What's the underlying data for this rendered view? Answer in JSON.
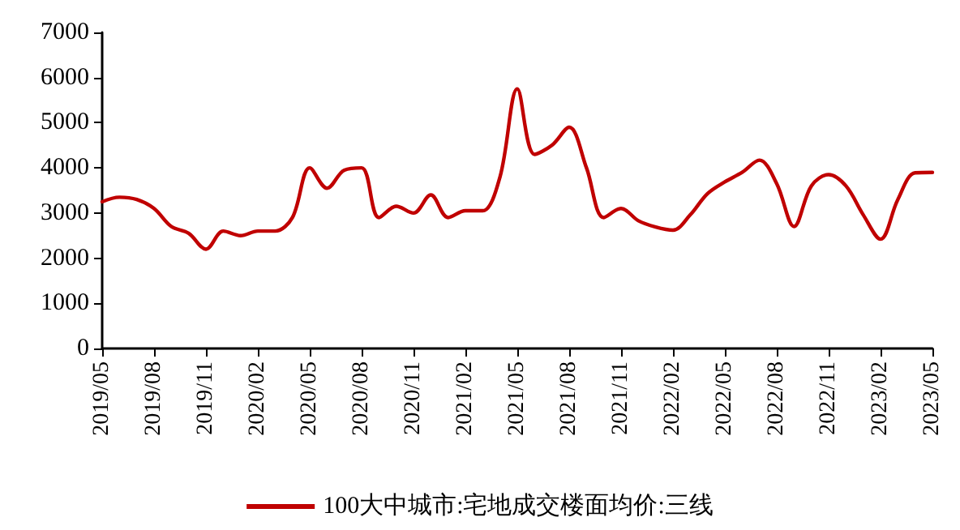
{
  "chart_data": {
    "type": "line",
    "categories": [
      "2019/05",
      null,
      null,
      "2019/08",
      null,
      null,
      "2019/11",
      null,
      null,
      "2020/02",
      null,
      null,
      "2020/05",
      null,
      null,
      "2020/08",
      null,
      null,
      "2020/11",
      null,
      null,
      "2021/02",
      null,
      null,
      "2021/05",
      null,
      null,
      "2021/08",
      null,
      null,
      "2021/11",
      null,
      null,
      "2022/02",
      null,
      null,
      "2022/05",
      null,
      null,
      "2022/08",
      null,
      null,
      "2022/11",
      null,
      null,
      "2023/02",
      null,
      null,
      "2023/05"
    ],
    "series": [
      {
        "name": "100大中城市:宅地成交楼面均价:三线",
        "color": "#c00000",
        "values": [
          3250,
          3350,
          3300,
          3100,
          2700,
          2550,
          2200,
          2600,
          2500,
          2600,
          2600,
          2900,
          4000,
          3550,
          3950,
          4000,
          2900,
          3150,
          3000,
          3400,
          2900,
          3050,
          3050,
          3800,
          5750,
          4300,
          4500,
          4900,
          4000,
          2900,
          3100,
          2830,
          2690,
          2620,
          2960,
          3430,
          3690,
          3900,
          4170,
          3650,
          2700,
          3600,
          3850,
          3600,
          2960,
          2420,
          3300,
          3890,
          3900
        ]
      }
    ],
    "ylim": [
      0,
      7000
    ],
    "yticks": [
      0,
      1000,
      2000,
      3000,
      4000,
      5000,
      6000,
      7000
    ],
    "grid": false,
    "legend": "bottom",
    "marker": "none",
    "line_style": "solid"
  }
}
